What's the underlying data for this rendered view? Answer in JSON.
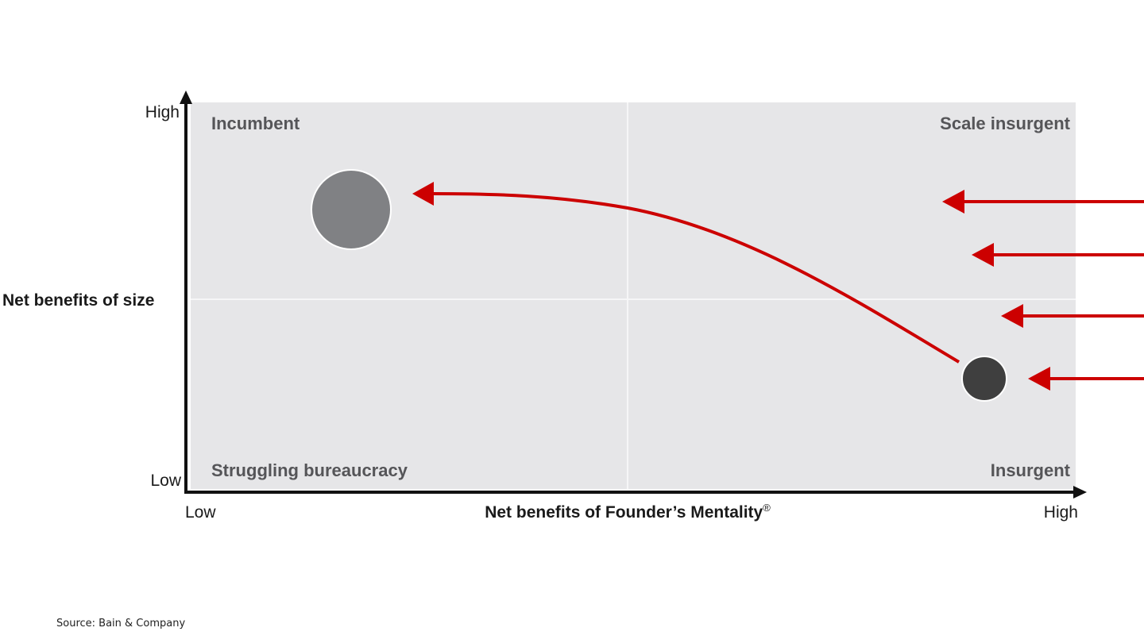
{
  "axes": {
    "y_title": "Net benefits of size",
    "y_high": "High",
    "y_low": "Low",
    "x_title": "Net benefits of Founder’s Mentality",
    "x_title_mark": "®",
    "x_low": "Low",
    "x_high": "High"
  },
  "quadrants": {
    "top_left": "Incumbent",
    "top_right": "Scale insurgent",
    "bottom_left": "Struggling bureaucracy",
    "bottom_right": "Insurgent"
  },
  "source": "Source: Bain & Company",
  "colors": {
    "arrow": "#cc0000",
    "plot_background": "#e6e6e8",
    "incumbent_circle": "#808184",
    "insurgent_circle": "#3f3f3f"
  }
}
